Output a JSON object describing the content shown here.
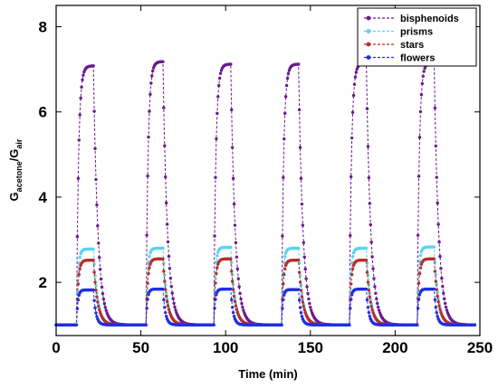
{
  "chart_data": {
    "type": "line",
    "title": "",
    "xlabel": "Time (min)",
    "ylabel_main": "G",
    "ylabel_sub1": "acetone",
    "ylabel_mid": "/G",
    "ylabel_sub2": "air",
    "xlim": [
      0,
      250
    ],
    "ylim": [
      0.75,
      8.5
    ],
    "xticks": [
      0,
      50,
      100,
      150,
      200,
      250
    ],
    "yticks": [
      2,
      4,
      6,
      8
    ],
    "xtick_labels": [
      "0",
      "50",
      "100",
      "150",
      "200",
      "250"
    ],
    "ytick_labels": [
      "2",
      "4",
      "6",
      "8"
    ],
    "grid": false,
    "legend_position": "top-right",
    "baseline": 1.0,
    "pulses": [
      {
        "on": 12,
        "off": 22
      },
      {
        "on": 53,
        "off": 63
      },
      {
        "on": 93,
        "off": 103
      },
      {
        "on": 133,
        "off": 143
      },
      {
        "on": 173,
        "off": 183
      },
      {
        "on": 213,
        "off": 223
      }
    ],
    "series": [
      {
        "name": "bisphenoids",
        "color": "#6a1b8f",
        "peaks": [
          7.08,
          7.18,
          7.12,
          7.12,
          7.15,
          7.17
        ],
        "tau_rise": 1.2,
        "tau_decay": 2.6
      },
      {
        "name": "prisms",
        "color": "#5bd3f0",
        "peaks": [
          2.78,
          2.8,
          2.82,
          2.8,
          2.8,
          2.83
        ],
        "tau_rise": 0.9,
        "tau_decay": 2.3
      },
      {
        "name": "stars",
        "color": "#b5302a",
        "peaks": [
          2.52,
          2.55,
          2.55,
          2.52,
          2.52,
          2.55
        ],
        "tau_rise": 1.0,
        "tau_decay": 2.4
      },
      {
        "name": "flowers",
        "color": "#1f2fe0",
        "peaks": [
          1.82,
          1.84,
          1.84,
          1.83,
          1.84,
          1.84
        ],
        "tau_rise": 0.8,
        "tau_decay": 1.4
      }
    ]
  }
}
